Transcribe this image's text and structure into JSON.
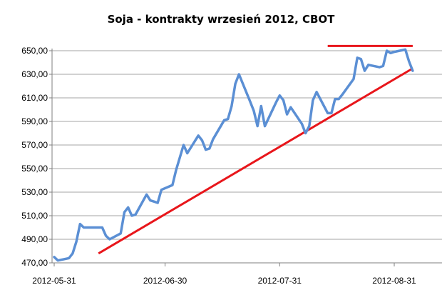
{
  "chart_data": {
    "type": "line",
    "title": "Soja - kontrakty wrzesień 2012, CBOT",
    "xlabel": "",
    "ylabel": "",
    "ylim": [
      470,
      650
    ],
    "yticks": [
      "470,00",
      "490,00",
      "510,00",
      "530,00",
      "550,00",
      "570,00",
      "590,00",
      "610,00",
      "630,00",
      "650,00"
    ],
    "xticks": [
      {
        "date": "2012-05-31",
        "label": "2012-05-31"
      },
      {
        "date": "2012-06-30",
        "label": "2012-06-30"
      },
      {
        "date": "2012-07-31",
        "label": "2012-07-31"
      },
      {
        "date": "2012-08-31",
        "label": "2012-08-31"
      }
    ],
    "xlim": [
      "2012-05-31",
      "2012-09-04"
    ],
    "grid": "horizontal",
    "legend": "none",
    "colors": {
      "price": "#5b8fd4",
      "trend": "#e8161b",
      "grid": "#a6a6a6",
      "axis": "#7f7f7f"
    },
    "series": [
      {
        "points": [
          [
            "2012-05-31",
            475
          ],
          [
            "2012-06-01",
            472
          ],
          [
            "2012-06-04",
            474
          ],
          [
            "2012-06-05",
            478
          ],
          [
            "2012-06-06",
            488
          ],
          [
            "2012-06-07",
            503
          ],
          [
            "2012-06-08",
            500
          ],
          [
            "2012-06-11",
            500
          ],
          [
            "2012-06-12",
            500
          ],
          [
            "2012-06-13",
            500
          ],
          [
            "2012-06-14",
            493
          ],
          [
            "2012-06-15",
            490
          ],
          [
            "2012-06-18",
            495
          ],
          [
            "2012-06-19",
            513
          ],
          [
            "2012-06-20",
            517
          ],
          [
            "2012-06-21",
            510
          ],
          [
            "2012-06-22",
            511
          ],
          [
            "2012-06-25",
            528
          ],
          [
            "2012-06-26",
            523
          ],
          [
            "2012-06-27",
            522
          ],
          [
            "2012-06-28",
            521
          ],
          [
            "2012-06-29",
            532
          ],
          [
            "2012-07-02",
            536
          ],
          [
            "2012-07-03",
            549
          ],
          [
            "2012-07-05",
            570
          ],
          [
            "2012-07-06",
            563
          ],
          [
            "2012-07-09",
            578
          ],
          [
            "2012-07-10",
            574
          ],
          [
            "2012-07-11",
            566
          ],
          [
            "2012-07-12",
            567
          ],
          [
            "2012-07-13",
            575
          ],
          [
            "2012-07-16",
            591
          ],
          [
            "2012-07-17",
            592
          ],
          [
            "2012-07-18",
            603
          ],
          [
            "2012-07-19",
            622
          ],
          [
            "2012-07-20",
            630
          ],
          [
            "2012-07-23",
            607
          ],
          [
            "2012-07-24",
            599
          ],
          [
            "2012-07-25",
            586
          ],
          [
            "2012-07-26",
            603
          ],
          [
            "2012-07-27",
            586
          ],
          [
            "2012-07-30",
            606
          ],
          [
            "2012-07-31",
            612
          ],
          [
            "2012-08-01",
            608
          ],
          [
            "2012-08-02",
            596
          ],
          [
            "2012-08-03",
            602
          ],
          [
            "2012-08-06",
            588
          ],
          [
            "2012-08-07",
            580
          ],
          [
            "2012-08-08",
            586
          ],
          [
            "2012-08-09",
            608
          ],
          [
            "2012-08-10",
            615
          ],
          [
            "2012-08-13",
            597
          ],
          [
            "2012-08-14",
            597
          ],
          [
            "2012-08-15",
            609
          ],
          [
            "2012-08-16",
            609
          ],
          [
            "2012-08-17",
            613
          ],
          [
            "2012-08-20",
            626
          ],
          [
            "2012-08-21",
            644
          ],
          [
            "2012-08-22",
            643
          ],
          [
            "2012-08-23",
            633
          ],
          [
            "2012-08-24",
            638
          ],
          [
            "2012-08-27",
            636
          ],
          [
            "2012-08-28",
            637
          ],
          [
            "2012-08-29",
            650
          ],
          [
            "2012-08-30",
            648
          ],
          [
            "2012-08-31",
            649
          ],
          [
            "2012-09-03",
            651
          ],
          [
            "2012-09-04",
            641
          ],
          [
            "2012-09-05",
            633
          ]
        ]
      }
    ],
    "trendlines": [
      {
        "from": [
          "2012-06-12",
          478
        ],
        "to": [
          "2012-09-05",
          635
        ]
      },
      {
        "from": [
          "2012-08-13",
          654
        ],
        "to": [
          "2012-09-05",
          654
        ]
      }
    ]
  }
}
